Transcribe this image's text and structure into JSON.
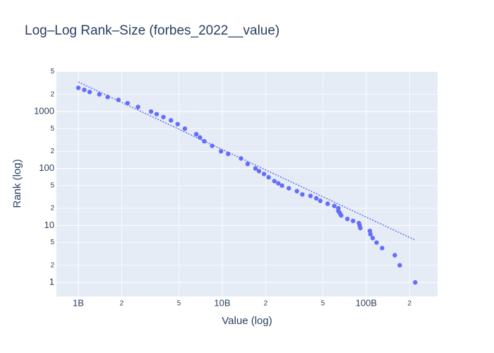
{
  "chart_data": {
    "type": "scatter",
    "title": "Log–Log Rank–Size (forbes_2022__value)",
    "x_label": "Value (log)",
    "y_label": "Rank (log)",
    "x_scale": "log",
    "y_scale": "log",
    "grid": true,
    "xlim": [
      705000000.0,
      313000000000.0
    ],
    "ylim": [
      0.565,
      5080
    ],
    "xticks": [
      {
        "value": 1000000000.0,
        "label": "1B"
      },
      {
        "value": 2000000000.0,
        "label": "2"
      },
      {
        "value": 5000000000.0,
        "label": "5"
      },
      {
        "value": 10000000000.0,
        "label": "10B"
      },
      {
        "value": 20000000000.0,
        "label": "2"
      },
      {
        "value": 50000000000.0,
        "label": "5"
      },
      {
        "value": 100000000000.0,
        "label": "100B"
      },
      {
        "value": 200000000000.0,
        "label": "2"
      }
    ],
    "yticks": [
      1,
      2,
      5,
      10,
      {
        "value": 20,
        "label": "2"
      },
      {
        "value": 50,
        "label": "5"
      },
      100,
      {
        "value": 200,
        "label": "2"
      },
      {
        "value": 500,
        "label": "5"
      },
      1000,
      {
        "value": 2000,
        "label": "2"
      },
      {
        "value": 5000,
        "label": "5"
      }
    ],
    "series": [
      {
        "color": "#636efa",
        "x": [
          219000000000.0,
          171000000000.0,
          158000000000.0,
          129000000000.0,
          118000000000.0,
          111000000000.0,
          107000000000.0,
          106000000000.0,
          91000000000.0,
          90000000000.0,
          89000000000.0,
          81000000000.0,
          74000000000.0,
          67000000000.0,
          66000000000.0,
          65000000000.0,
          64000000000.0,
          64000000000.0,
          60000000000.0,
          54000000000.0,
          48000000000.0,
          45000000000.0,
          41000000000.0,
          36000000000.0,
          33000000000.0,
          29000000000.0,
          26000000000.0,
          24500000000.0,
          23000000000.0,
          21000000000.0,
          19500000000.0,
          18000000000.0,
          17000000000.0,
          15000000000.0,
          13500000000.0,
          11000000000.0,
          9800000000.0,
          8500000000.0,
          7500000000.0,
          7000000000.0,
          6600000000.0,
          5500000000.0,
          4900000000.0,
          4400000000.0,
          3900000000.0,
          3500000000.0,
          3200000000.0,
          2600000000.0,
          2200000000.0,
          1900000000.0,
          1600000000.0,
          1400000000.0,
          1200000000.0,
          1100000000.0,
          1000000000.0
        ],
        "values": [
          1,
          2,
          3,
          4,
          5,
          6,
          7,
          8,
          9,
          10,
          11,
          12,
          13,
          15,
          16,
          17,
          18,
          20,
          22,
          24,
          27,
          30,
          33,
          35,
          40,
          45,
          50,
          55,
          60,
          70,
          80,
          90,
          100,
          120,
          150,
          180,
          200,
          250,
          300,
          350,
          400,
          500,
          600,
          700,
          800,
          900,
          1000,
          1200,
          1400,
          1600,
          1800,
          2000,
          2200,
          2400,
          2600
        ]
      }
    ],
    "trend_line": {
      "color": "#636efa",
      "x": [
        1000000000.0,
        220000000000.0
      ],
      "values": [
        3300,
        5.5
      ]
    }
  }
}
